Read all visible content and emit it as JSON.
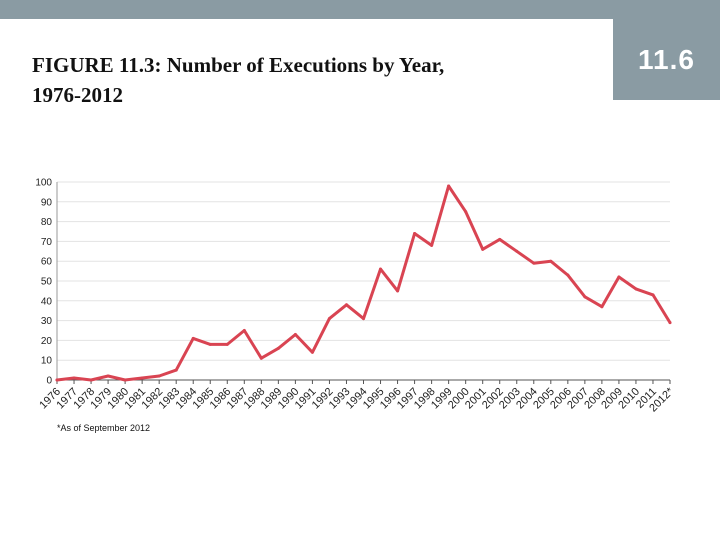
{
  "badge": {
    "number": "11.6",
    "color": "#8a9ba3"
  },
  "slide": {
    "title_line1": "FIGURE 11.3: Number of Executions by Year,",
    "title_line2": "1976-2012"
  },
  "chart_data": {
    "type": "line",
    "title": "",
    "xlabel": "",
    "ylabel": "",
    "ylim": [
      0,
      100
    ],
    "yticks": [
      0,
      10,
      20,
      30,
      40,
      50,
      60,
      70,
      80,
      90,
      100
    ],
    "grid": true,
    "line_color": "#d94452",
    "x": [
      "1976",
      "1977",
      "1978",
      "1979",
      "1980",
      "1981",
      "1982",
      "1983",
      "1984",
      "1985",
      "1986",
      "1987",
      "1988",
      "1989",
      "1990",
      "1991",
      "1992",
      "1993",
      "1994",
      "1995",
      "1996",
      "1997",
      "1998",
      "1999",
      "2000",
      "2001",
      "2002",
      "2003",
      "2004",
      "2005",
      "2006",
      "2007",
      "2008",
      "2009",
      "2010",
      "2011",
      "2012*"
    ],
    "values": [
      0,
      1,
      0,
      2,
      0,
      1,
      2,
      5,
      21,
      18,
      18,
      25,
      11,
      16,
      23,
      14,
      31,
      38,
      31,
      56,
      45,
      74,
      68,
      98,
      85,
      66,
      71,
      65,
      59,
      60,
      53,
      42,
      37,
      52,
      46,
      43,
      29
    ],
    "footnote": "*As of September 2012"
  }
}
